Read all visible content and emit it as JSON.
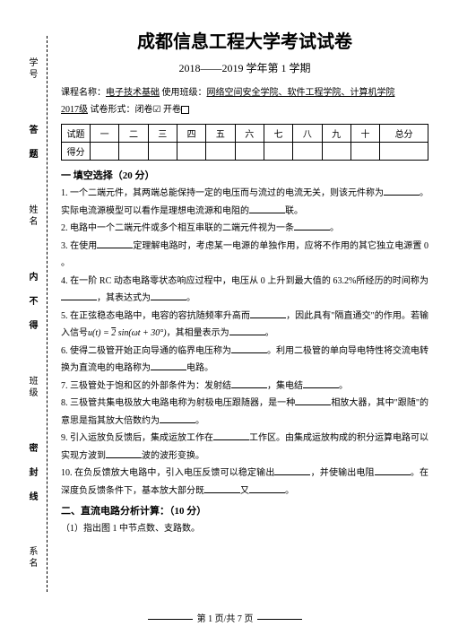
{
  "margin": {
    "labels": [
      "学号",
      "姓名",
      "班级",
      "系名"
    ],
    "sealText": "密 封 线 内 不 得 答 题"
  },
  "header": {
    "title": "成都信息工程大学考试试卷",
    "semester": "2018——2019 学年第 1 学期",
    "courseLabel": "课程名称：",
    "courseName": "电子技术基础",
    "classLabel": " 使用班级：",
    "className": "网络空间安全学院、软件工程学院、计算机学院",
    "year": "2017级",
    "formLabel": " 试卷形式：",
    "closed": "闭卷",
    "open": " 开卷"
  },
  "scoreTable": {
    "rowLabel1": "试题",
    "rowLabel2": "得分",
    "cols": [
      "一",
      "二",
      "三",
      "四",
      "五",
      "六",
      "七",
      "八",
      "九",
      "十",
      "总分"
    ]
  },
  "section1": {
    "title": "一 填空选择（20 分）",
    "q1a": "1. 一个二端元件，其两端总能保持一定的电压而与流过的电流无关，则该元件称为",
    "q1b": "。实际电流源模型可以看作是理想电流源和电阻的",
    "q1c": "联。",
    "q2a": "2. 电路中一个二端元件或多个相互串联的二端元件视为一条",
    "q2b": "。",
    "q3a": "3. 在使用",
    "q3b": "定理解电路时，考虑某一电源的单独作用，应将不作用的其它独立电源置 0 。",
    "q4a": "4. 在一阶 RC 动态电路零状态响应过程中，电压从 0 上升到最大值的 63.2%所经历的时间称为",
    "q4b": "，其表达式为",
    "q4c": "。",
    "q5a": "5. 在正弦稳态电路中，电容的容抗随频率升高而",
    "q5b": "，因此具有\"隔直通交\"的作用。若输入信号",
    "q5formula": "u(t) = √2 sin(ωt + 30°)",
    "q5c": "，其相量表示为",
    "q5d": "。",
    "q6a": "6. 使得二极管开始正向导通的临界电压称为",
    "q6b": "。利用二极管的单向导电特性将交流电转换为直流电的电路称为",
    "q6c": "电路。",
    "q7a": "7. 三极管处于饱和区的外部条件为：发射结",
    "q7b": "，集电结",
    "q7c": "。",
    "q8a": "8. 三极管共集电极放大电路电称为射极电压跟随器，是一种",
    "q8b": "相放大器，其中\"跟随\"的意思是指其放大倍数约为",
    "q8c": "。",
    "q9a": "9. 引入运放负反馈后，集成运放工作在",
    "q9b": "工作区。由集成运放构成的积分运算电路可以实现方波到",
    "q9c": "波的波形变换。",
    "q10a": "10. 在负反馈放大电路中，引入电压反馈可以稳定输出",
    "q10b": "，并使输出电阻",
    "q10c": "。在深度负反馈条件下，基本放大部分既",
    "q10d": "又",
    "q10e": "。"
  },
  "section2": {
    "title": "二、直流电路分析计算：（10 分）",
    "q1": "（1）指出图 1 中节点数、支路数。"
  },
  "footer": {
    "text": "第 1 页/共 7 页"
  }
}
